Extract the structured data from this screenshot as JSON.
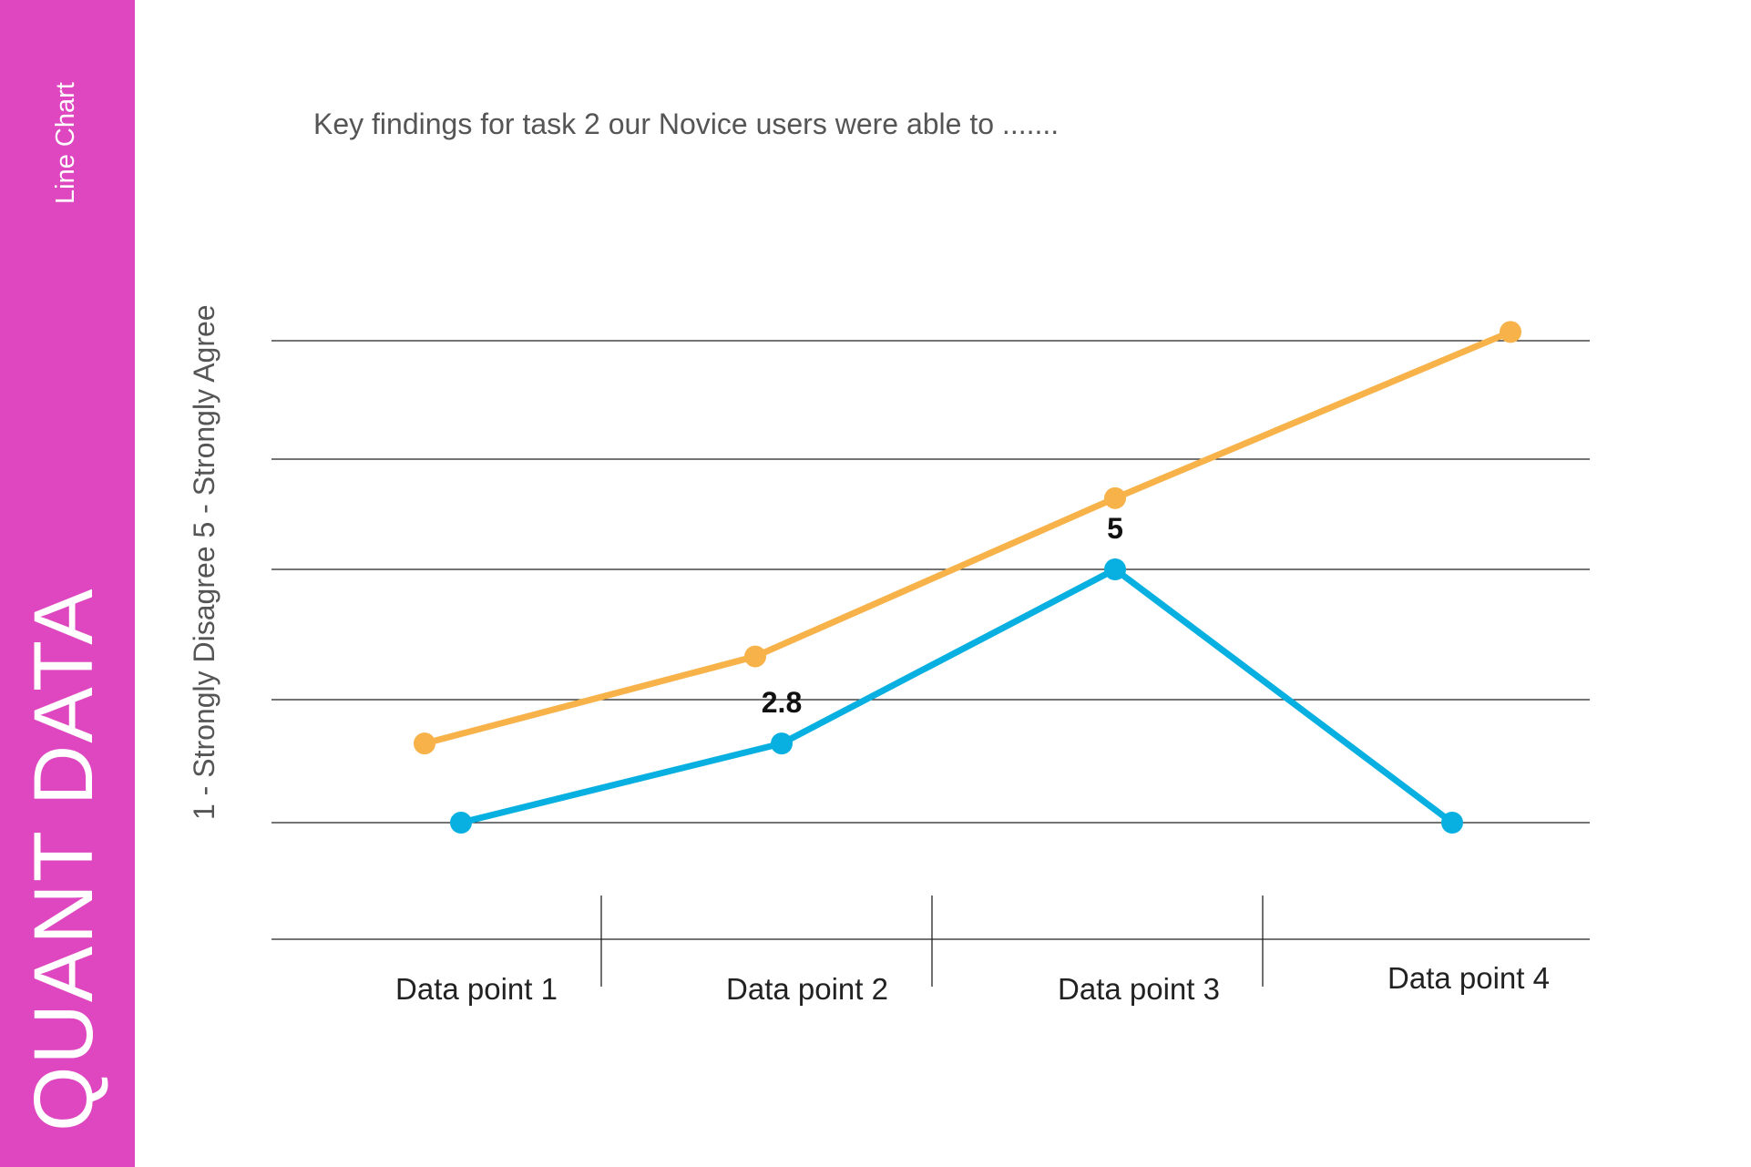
{
  "sidebar": {
    "title": "QUANT DATA",
    "subtitle": "Line Chart",
    "color": "#DE47BF"
  },
  "key_findings": "Key findings for task 2 our Novice users were able to .......",
  "chart_data": {
    "type": "line",
    "ylabel": "1 - Strongly Disagree 5 - Strongly Agree",
    "categories": [
      "Data point 1",
      "Data point 2",
      "Data point 3",
      "Data point 4"
    ],
    "grid": true,
    "series": [
      {
        "color": "#F8B24A",
        "values": [
          2.8,
          3.9,
          5.9,
          8.0
        ]
      },
      {
        "color": "#07B0E0",
        "values": [
          1.8,
          2.8,
          5.0,
          1.8
        ],
        "data_labels": [
          "",
          "2.8",
          "5",
          ""
        ]
      }
    ]
  }
}
